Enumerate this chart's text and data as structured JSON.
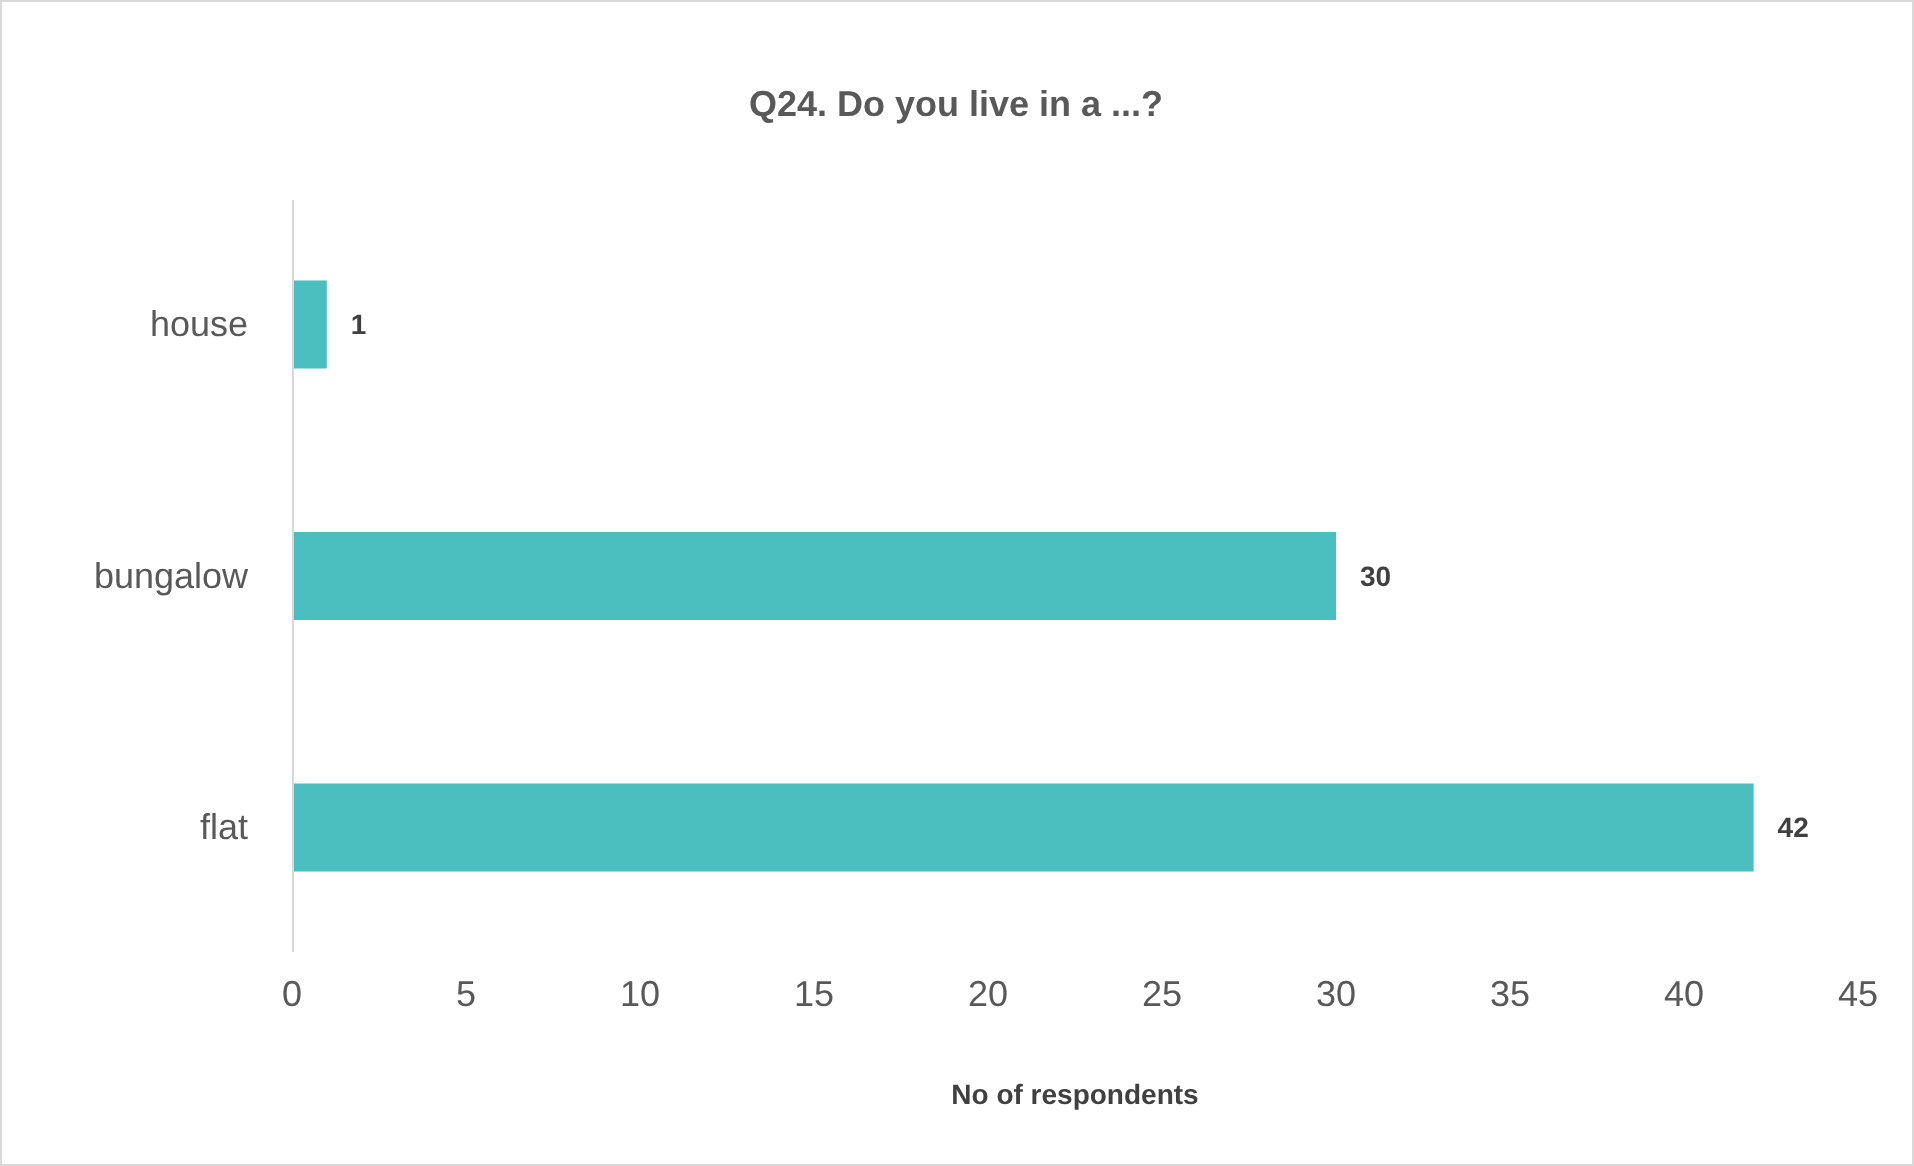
{
  "chart_data": {
    "type": "bar",
    "orientation": "horizontal",
    "title": "Q24. Do you live in a ...?",
    "xlabel": "No of respondents",
    "categories": [
      "house",
      "bungalow",
      "flat"
    ],
    "values": [
      1,
      30,
      42
    ],
    "color": "#4bbfbf",
    "xlim": [
      0,
      45
    ],
    "xticks": [
      0,
      5,
      10,
      15,
      20,
      25,
      30,
      35,
      40,
      45
    ],
    "data_labels": true
  }
}
